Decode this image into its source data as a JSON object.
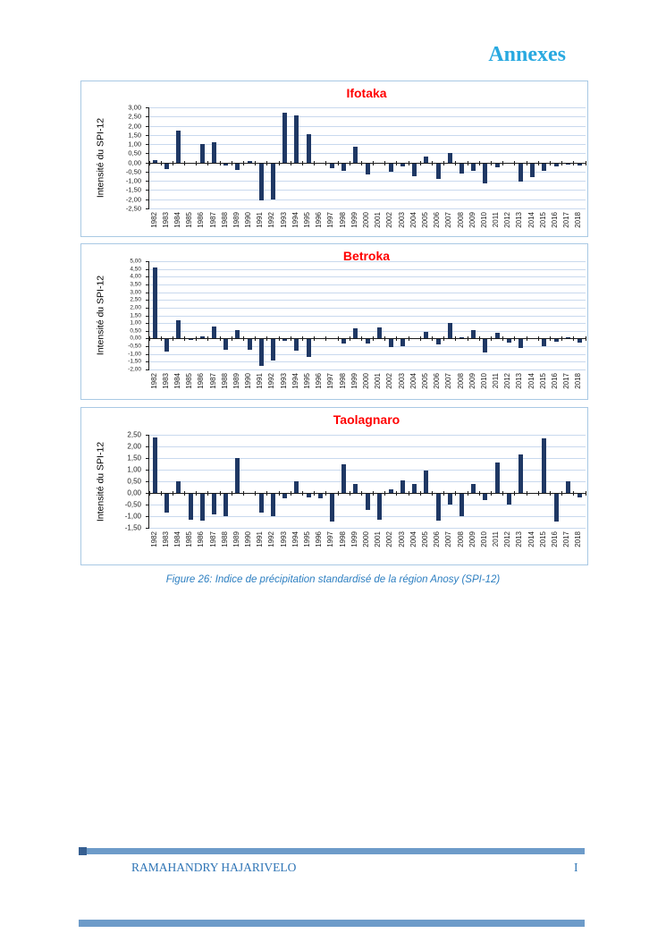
{
  "page": {
    "header_title": "Annexes",
    "caption": "Figure 26: Indice de précipitation standardisé de la région Anosy (SPI-12)",
    "footer": {
      "author": "RAMAHANDRY HAJARIVELO",
      "page_number": "I"
    }
  },
  "colors": {
    "header_title": "#29A9E0",
    "chart_title": "#FF0000",
    "bar": "#1F3864",
    "gridline": "#C9D9EE",
    "axis": "#1a1a1a",
    "caption": "#2D7FC1",
    "footer_text": "#2E74B5",
    "footer_bar": "#6D9BC9",
    "footer_bar_cap": "#365F91",
    "chart_border": "#A9C9E4"
  },
  "chart_data": [
    {
      "type": "bar",
      "title": "Ifotaka",
      "ylabel": "Intensité du SPI-12",
      "ylim": [
        -2.5,
        3.0
      ],
      "ytick_step": 0.5,
      "grid": true,
      "legend": false,
      "ytick_labels": [
        "3,00",
        "2,50",
        "2,00",
        "1,50",
        "1,00",
        "0,50",
        "0,00",
        "-0,50",
        "-1,00",
        "-1,50",
        "-2,00",
        "-2,50"
      ],
      "categories": [
        "1982",
        "1983",
        "1984",
        "1985",
        "1986",
        "1987",
        "1988",
        "1989",
        "1990",
        "1991",
        "1992",
        "1993",
        "1994",
        "1995",
        "1996",
        "1997",
        "1998",
        "1999",
        "2000",
        "2001",
        "2002",
        "2003",
        "2004",
        "2005",
        "2006",
        "2007",
        "2008",
        "2009",
        "2010",
        "2011",
        "2012",
        "2013",
        "2014",
        "2015",
        "2016",
        "2017",
        "2018"
      ],
      "values": [
        0.12,
        -0.32,
        1.75,
        0,
        1.0,
        1.1,
        -0.13,
        -0.35,
        0.1,
        -2.0,
        -1.95,
        2.7,
        2.55,
        1.55,
        0,
        -0.25,
        -0.4,
        0.85,
        -0.6,
        0,
        -0.45,
        -0.15,
        -0.7,
        0.3,
        -0.85,
        0.5,
        -0.55,
        -0.4,
        -1.1,
        -0.2,
        0,
        -1.0,
        -0.75,
        -0.4,
        -0.15,
        -0.05,
        -0.1
      ]
    },
    {
      "type": "bar",
      "title": "Betroka",
      "ylabel": "Intensité du SPI-12",
      "ylim": [
        -2.0,
        5.0
      ],
      "ytick_step": 0.5,
      "grid": true,
      "legend": false,
      "ytick_labels": [
        "5,00",
        "4,50",
        "4,00",
        "3,50",
        "3,00",
        "2,50",
        "2,00",
        "1,50",
        "1,00",
        "0,50",
        "0,00",
        "-0,50",
        "-1,00",
        "-1,50",
        "-2,00"
      ],
      "categories": [
        "1982",
        "1983",
        "1984",
        "1985",
        "1986",
        "1987",
        "1988",
        "1989",
        "1990",
        "1991",
        "1992",
        "1993",
        "1994",
        "1995",
        "1996",
        "1997",
        "1998",
        "1999",
        "2000",
        "2001",
        "2002",
        "2003",
        "2004",
        "2005",
        "2006",
        "2007",
        "2008",
        "2009",
        "2010",
        "2011",
        "2012",
        "2013",
        "2014",
        "2015",
        "2016",
        "2017",
        "2018"
      ],
      "values": [
        4.6,
        -0.8,
        1.2,
        -0.05,
        0.15,
        0.8,
        -0.65,
        0.55,
        -0.65,
        -1.7,
        -1.35,
        -0.08,
        -0.7,
        -1.15,
        0,
        0,
        -0.25,
        0.65,
        -0.25,
        0.7,
        -0.5,
        -0.45,
        0,
        0.45,
        -0.35,
        1.0,
        0.1,
        0.55,
        -0.85,
        0.35,
        -0.2,
        -0.55,
        0,
        -0.45,
        -0.15,
        0.05,
        -0.2
      ]
    },
    {
      "type": "bar",
      "title": "Taolagnaro",
      "ylabel": "Intensité du SPI-12",
      "ylim": [
        -1.5,
        2.5
      ],
      "ytick_step": 0.5,
      "grid": true,
      "legend": false,
      "ytick_labels": [
        "2,50",
        "2,00",
        "1,50",
        "1,00",
        "0,50",
        "0,00",
        "-0,50",
        "-1,00",
        "-1,50"
      ],
      "categories": [
        "1982",
        "1983",
        "1984",
        "1985",
        "1986",
        "1987",
        "1988",
        "1989",
        "1990",
        "1991",
        "1992",
        "1993",
        "1994",
        "1995",
        "1996",
        "1997",
        "1998",
        "1999",
        "2000",
        "2001",
        "2002",
        "2003",
        "2004",
        "2005",
        "2006",
        "2007",
        "2008",
        "2009",
        "2010",
        "2011",
        "2012",
        "2013",
        "2014",
        "2015",
        "2016",
        "2017",
        "2018"
      ],
      "values": [
        2.4,
        -0.8,
        0.5,
        -1.1,
        -1.15,
        -0.9,
        -0.95,
        1.5,
        0,
        -0.8,
        -0.95,
        -0.2,
        0.5,
        -0.15,
        -0.2,
        -1.2,
        1.25,
        0.4,
        -0.7,
        -1.1,
        0.15,
        0.55,
        0.4,
        0.95,
        -1.15,
        -0.45,
        -0.95,
        0.4,
        -0.25,
        1.3,
        -0.45,
        1.65,
        0,
        2.35,
        -1.2,
        0.5,
        -0.15
      ]
    }
  ]
}
